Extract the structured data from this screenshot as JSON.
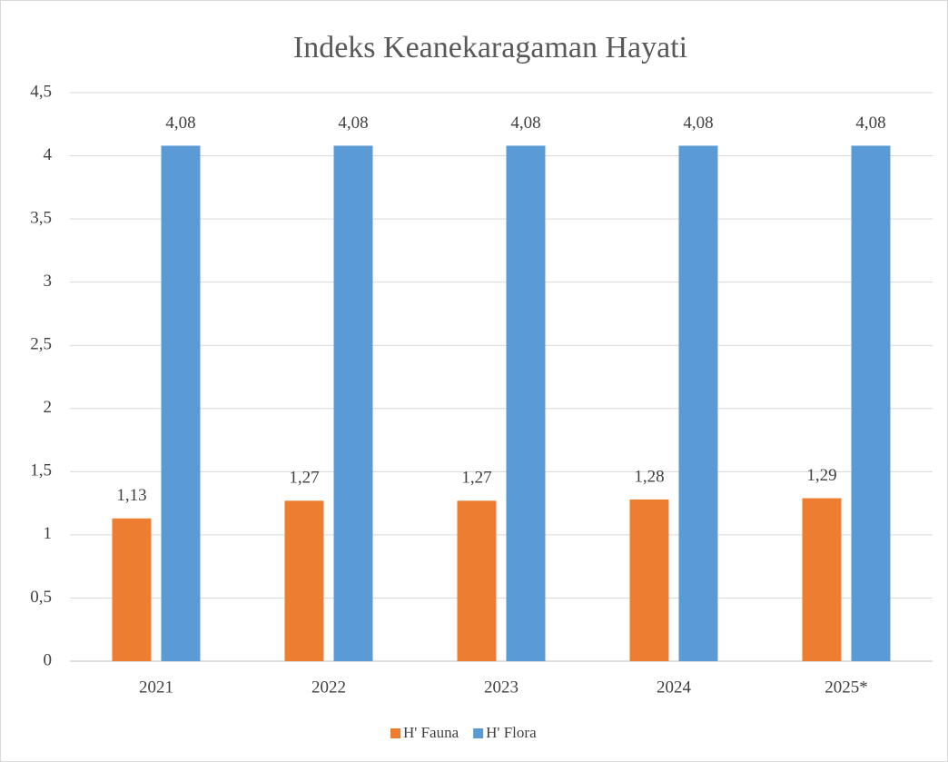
{
  "chart_data": {
    "type": "bar",
    "title": "Indeks Keanekaragaman Hayati",
    "categories": [
      "2021",
      "2022",
      "2023",
      "2024",
      "2025*"
    ],
    "series": [
      {
        "name": "H' Fauna",
        "color": "#ed7d31",
        "values": [
          1.13,
          1.27,
          1.27,
          1.28,
          1.29
        ],
        "value_labels": [
          "1,13",
          "1,27",
          "1,27",
          "1,28",
          "1,29"
        ]
      },
      {
        "name": "H' Flora",
        "color": "#5b9bd5",
        "values": [
          4.08,
          4.08,
          4.08,
          4.08,
          4.08
        ],
        "value_labels": [
          "4,08",
          "4,08",
          "4,08",
          "4,08",
          "4,08"
        ]
      }
    ],
    "ylim": [
      0,
      4.5
    ],
    "yticks": [
      0,
      {
        "value": 0.5,
        "label": "0,5"
      },
      1,
      {
        "value": 1.5,
        "label": "1,5"
      },
      2,
      {
        "value": 2.5,
        "label": "2,5"
      },
      3,
      {
        "value": 3.5,
        "label": "3,5"
      },
      4,
      {
        "value": 4.5,
        "label": "4,5"
      }
    ],
    "grid": true
  }
}
